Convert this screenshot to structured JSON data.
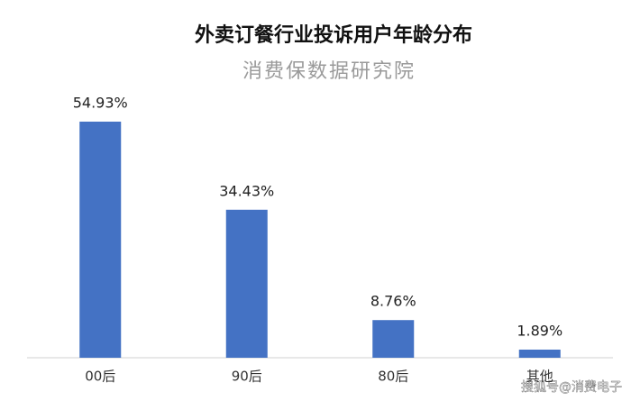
{
  "chart_data": {
    "type": "bar",
    "title": "外卖订餐行业投诉用户年龄分布",
    "subtitle": "消费保数据研究院",
    "categories": [
      "00后",
      "90后",
      "80后",
      "其他"
    ],
    "values": [
      54.93,
      34.43,
      8.76,
      1.89
    ],
    "value_labels": [
      "54.93%",
      "34.43%",
      "8.76%",
      "1.89%"
    ],
    "color": "#4472c4"
  },
  "watermark": "搜狐号@消费电子"
}
